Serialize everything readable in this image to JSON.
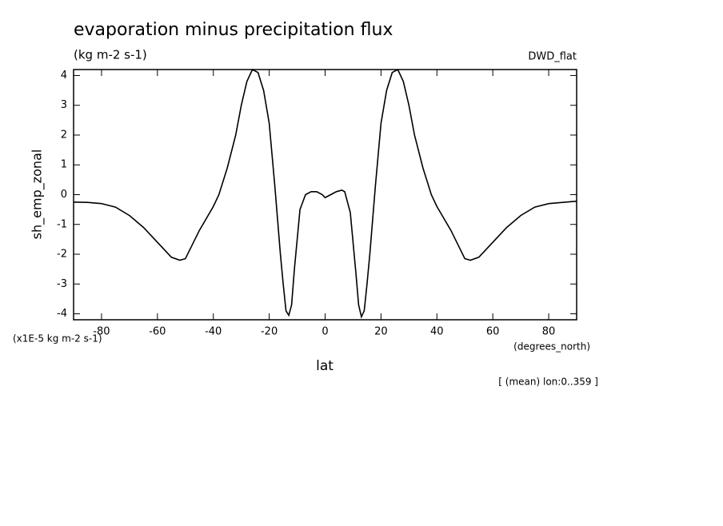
{
  "chart_data": {
    "type": "line",
    "title": "evaporation minus precipitation flux",
    "subtitle": "(kg m-2 s-1)",
    "dataset": "DWD_flat",
    "ylabel": "sh_emp_zonal",
    "yunits": "(x1E-5 kg m-2 s-1)",
    "xlabel": "lat",
    "xunits": "(degrees_north)",
    "annotation": "[ (mean) lon:0..359 ]",
    "color": "#000000",
    "xlim": [
      -90,
      90
    ],
    "ylim": [
      -4.2,
      4.2
    ],
    "xticks": [
      -80,
      -60,
      -40,
      -20,
      0,
      20,
      40,
      60,
      80
    ],
    "yticks": [
      -4,
      -3,
      -2,
      -1,
      0,
      1,
      2,
      3,
      4
    ],
    "x": [
      -90,
      -85,
      -80,
      -75,
      -70,
      -65,
      -60,
      -55,
      -52,
      -50,
      -45,
      -40,
      -38,
      -35,
      -32,
      -30,
      -28,
      -26,
      -24,
      -22,
      -20,
      -18,
      -16,
      -15,
      -14,
      -13,
      -12,
      -11,
      -9,
      -7,
      -5,
      -3,
      -1,
      0,
      2,
      4,
      6,
      7,
      9,
      11,
      12,
      13,
      14,
      15,
      16,
      18,
      20,
      22,
      24,
      26,
      28,
      30,
      32,
      35,
      38,
      40,
      45,
      50,
      52,
      55,
      60,
      65,
      70,
      75,
      80,
      85,
      90
    ],
    "y": [
      -0.25,
      -0.26,
      -0.3,
      -0.42,
      -0.7,
      -1.1,
      -1.6,
      -2.1,
      -2.2,
      -2.15,
      -1.2,
      -0.4,
      0.0,
      0.9,
      2.0,
      3.0,
      3.8,
      4.2,
      4.1,
      3.5,
      2.4,
      0.3,
      -2.0,
      -3.0,
      -3.9,
      -4.05,
      -3.7,
      -2.5,
      -0.5,
      0.0,
      0.1,
      0.1,
      0.0,
      -0.1,
      0.0,
      0.1,
      0.15,
      0.1,
      -0.6,
      -2.6,
      -3.7,
      -4.1,
      -3.9,
      -3.0,
      -2.0,
      0.3,
      2.4,
      3.5,
      4.1,
      4.2,
      3.8,
      3.0,
      2.0,
      0.9,
      0.0,
      -0.4,
      -1.2,
      -2.15,
      -2.2,
      -2.1,
      -1.6,
      -1.1,
      -0.7,
      -0.42,
      -0.3,
      -0.26,
      -0.22
    ]
  }
}
